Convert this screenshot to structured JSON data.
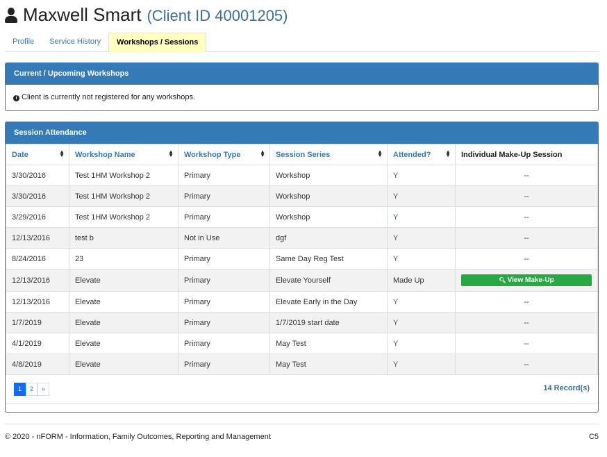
{
  "header": {
    "name": "Maxwell Smart",
    "client_id": "(Client ID 40001205)"
  },
  "tabs": [
    "Profile",
    "Service History",
    "Workshops / Sessions"
  ],
  "active_tab": "Workshops / Sessions",
  "current": {
    "title": "Current / Upcoming Workshops",
    "message": "Client is currently not registered for any workshops."
  },
  "attendance": {
    "title": "Session Attendance",
    "columns": [
      "Date",
      "Workshop Name",
      "Workshop Type",
      "Session Series",
      "Attended?",
      "Individual Make-Up Session"
    ],
    "rows": [
      [
        "3/30/2016",
        "Test 1HM Workshop 2",
        "Primary",
        "Workshop",
        "Y",
        "--"
      ],
      [
        "3/30/2016",
        "Test 1HM Workshop 2",
        "Primary",
        "Workshop",
        "Y",
        "--"
      ],
      [
        "3/29/2016",
        "Test 1HM Workshop 2",
        "Primary",
        "Workshop",
        "Y",
        "--"
      ],
      [
        "12/13/2016",
        "test b",
        "Not in Use",
        "dgf",
        "Y",
        "--"
      ],
      [
        "8/24/2016",
        "23",
        "Primary",
        "Same Day Reg Test",
        "Y",
        "--"
      ],
      [
        "12/13/2016",
        "Elevate",
        "Primary",
        "Elevate Yourself",
        "Made Up",
        "View Make-Up"
      ],
      [
        "12/13/2016",
        "Elevate",
        "Primary",
        "Elevate Early in the Day",
        "Y",
        "--"
      ],
      [
        "1/7/2019",
        "Elevate",
        "Primary",
        "1/7/2019 start date",
        "Y",
        "--"
      ],
      [
        "4/1/2019",
        "Elevate",
        "Primary",
        "May Test",
        "Y",
        "--"
      ],
      [
        "4/8/2019",
        "Elevate",
        "Primary",
        "May Test",
        "Y",
        "--"
      ]
    ],
    "pages": [
      "1",
      "2",
      "»"
    ],
    "current_page": "1",
    "records": "14 Record(s)"
  },
  "footer": {
    "copyright": "© 2020 - nFORM - Information, Family Outcomes, Reporting and Management",
    "code": "C5"
  }
}
